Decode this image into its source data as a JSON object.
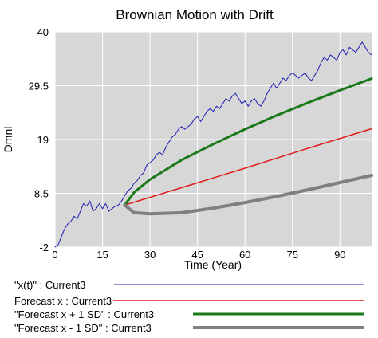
{
  "chart_data": {
    "type": "line",
    "title": "Brownian Motion with Drift",
    "xlabel": "Time (Year)",
    "ylabel": "Dmnl",
    "xlim": [
      0,
      100
    ],
    "ylim": [
      -2,
      40
    ],
    "xticks": [
      "0",
      "15",
      "30",
      "45",
      "60",
      "75",
      "90"
    ],
    "yticks": [
      "-2",
      "8.5",
      "19",
      "29.5",
      "40"
    ],
    "grid": true,
    "legend_position": "bottom",
    "series": [
      {
        "name": "\"x(t)\" : Current3",
        "color": "#1f1fb4",
        "x": [
          0,
          1,
          2,
          3,
          4,
          5,
          6,
          7,
          8,
          9,
          10,
          11,
          12,
          13,
          14,
          15,
          16,
          17,
          18,
          19,
          20,
          21,
          22,
          23,
          24,
          25,
          26,
          27,
          28,
          29,
          30,
          31,
          32,
          33,
          34,
          35,
          36,
          37,
          38,
          39,
          40,
          41,
          42,
          43,
          44,
          45,
          46,
          47,
          48,
          49,
          50,
          51,
          52,
          53,
          54,
          55,
          56,
          57,
          58,
          59,
          60,
          61,
          62,
          63,
          64,
          65,
          66,
          67,
          68,
          69,
          70,
          71,
          72,
          73,
          74,
          75,
          76,
          77,
          78,
          79,
          80,
          81,
          82,
          83,
          84,
          85,
          86,
          87,
          88,
          89,
          90,
          91,
          92,
          93,
          94,
          95,
          96,
          97,
          98,
          99,
          100
        ],
        "y": [
          -2,
          -1.5,
          0,
          1.5,
          2.5,
          3,
          4,
          3.5,
          5,
          6.5,
          6,
          7,
          5,
          5.5,
          6.5,
          5.5,
          6.5,
          5,
          5.5,
          6,
          6.2,
          7,
          8,
          9,
          9.5,
          10.5,
          11,
          12,
          12.5,
          14,
          14.5,
          15,
          16,
          16.5,
          16,
          17.5,
          18.5,
          19.5,
          20,
          21,
          21.5,
          21,
          21.5,
          22,
          23,
          23.5,
          22.5,
          23.5,
          24.5,
          25,
          24.5,
          25.5,
          25,
          26,
          27,
          26.5,
          27.5,
          28,
          27,
          26,
          26.5,
          25.5,
          26.5,
          27,
          26,
          25.5,
          26.5,
          28,
          29,
          30,
          29,
          30,
          31,
          30.5,
          31.5,
          32,
          31.5,
          31,
          31.5,
          32,
          31,
          30.5,
          31.5,
          32.5,
          34,
          35,
          34.5,
          35.5,
          35,
          34.5,
          36,
          36.5,
          35.5,
          37,
          36.5,
          36,
          37,
          38,
          37,
          36,
          35.5
        ]
      },
      {
        "name": "Forecast x : Current3",
        "color": "#e01b1b",
        "x": [
          22,
          40,
          60,
          80,
          100
        ],
        "y": [
          6.2,
          9.6,
          13.4,
          17.3,
          21.1
        ]
      },
      {
        "name": "\"Forecast x + 1 SD\" : Current3",
        "color": "#1a7a1a",
        "x": [
          22,
          25,
          30,
          40,
          50,
          60,
          70,
          80,
          90,
          100
        ],
        "y": [
          6.2,
          8.7,
          11.2,
          15.0,
          18.1,
          21.0,
          23.7,
          26.2,
          28.6,
          30.9
        ]
      },
      {
        "name": "\"Forecast x - 1 SD\" : Current3",
        "color": "#808080",
        "x": [
          22,
          25,
          30,
          40,
          50,
          60,
          70,
          80,
          90,
          100
        ],
        "y": [
          6.2,
          4.7,
          4.5,
          4.7,
          5.6,
          6.7,
          7.9,
          9.2,
          10.6,
          12.0
        ]
      }
    ]
  }
}
